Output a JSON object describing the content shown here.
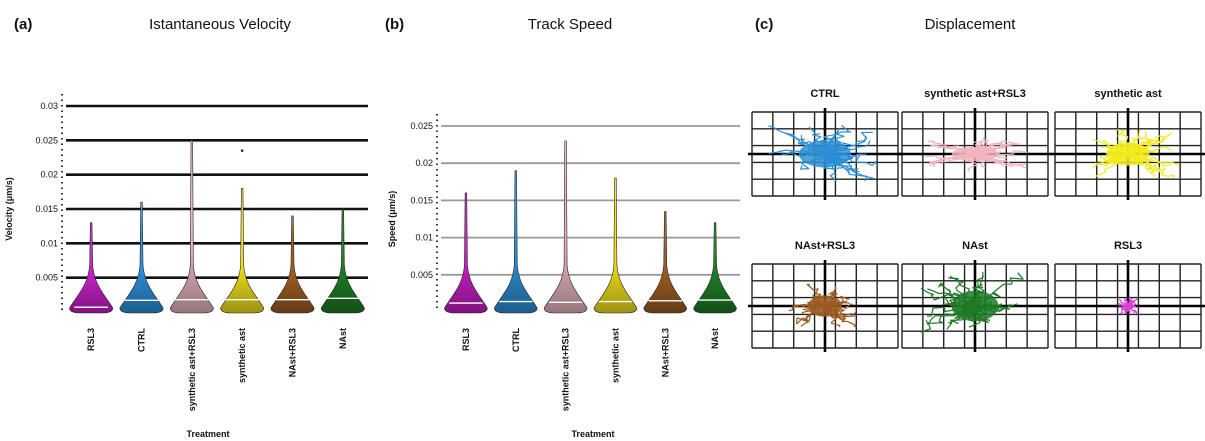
{
  "panels": {
    "a": {
      "letter": "(a)",
      "title": "Istantaneous Velocity"
    },
    "b": {
      "letter": "(b)",
      "title": "Track Speed"
    },
    "c": {
      "letter": "(c)",
      "title": "Displacement"
    }
  },
  "chart_data": [
    {
      "type": "violin",
      "title": "Istantaneous Velocity",
      "xlabel": "Treatment",
      "ylabel": "Velocity (μm/s)",
      "ylim": [
        0,
        0.03
      ],
      "yticks": [
        0.005,
        0.01,
        0.015,
        0.02,
        0.025,
        0.03
      ],
      "grid": true,
      "categories": [
        "RSL3",
        "CTRL",
        "synthetic ast+RSL3",
        "synthetic ast",
        "NAst+RSL3",
        "NAst"
      ],
      "colors": [
        "#c21fc0",
        "#2d8fd6",
        "#e9b5bf",
        "#f2e11c",
        "#9a5a22",
        "#1d7a24"
      ],
      "medians": [
        0.0007,
        0.0017,
        0.0018,
        0.0018,
        0.0018,
        0.002
      ],
      "max": [
        0.013,
        0.016,
        0.025,
        0.018,
        0.014,
        0.015
      ],
      "outliers": [
        {
          "category": "synthetic ast",
          "value": 0.0235
        }
      ]
    },
    {
      "type": "violin",
      "title": "Track Speed",
      "xlabel": "Treatment",
      "ylabel": "Speed (μm/s)",
      "ylim": [
        0,
        0.025
      ],
      "yticks": [
        0.005,
        0.01,
        0.015,
        0.02,
        0.025
      ],
      "grid": true,
      "categories": [
        "RSL3",
        "CTRL",
        "synthetic ast+RSL3",
        "synthetic ast",
        "NAst+RSL3",
        "NAst"
      ],
      "colors": [
        "#c21fc0",
        "#2d8fd6",
        "#e9b5bf",
        "#f2e11c",
        "#9a5a22",
        "#1d7a24"
      ],
      "medians": [
        0.0012,
        0.0014,
        0.0013,
        0.0014,
        0.0015,
        0.0016
      ],
      "max": [
        0.016,
        0.019,
        0.023,
        0.018,
        0.0135,
        0.012
      ]
    },
    {
      "type": "trajectory-grid",
      "title": "Displacement",
      "plots": [
        {
          "name": "CTRL",
          "color": "#2d8fd6"
        },
        {
          "name": "synthetic ast+RSL3",
          "color": "#f2b3bd"
        },
        {
          "name": "synthetic ast",
          "color": "#f2ea1c"
        },
        {
          "name": "NAst+RSL3",
          "color": "#9a5a22"
        },
        {
          "name": "NAst",
          "color": "#1d7a24"
        },
        {
          "name": "RSL3",
          "color": "#d93fd6"
        }
      ]
    }
  ]
}
